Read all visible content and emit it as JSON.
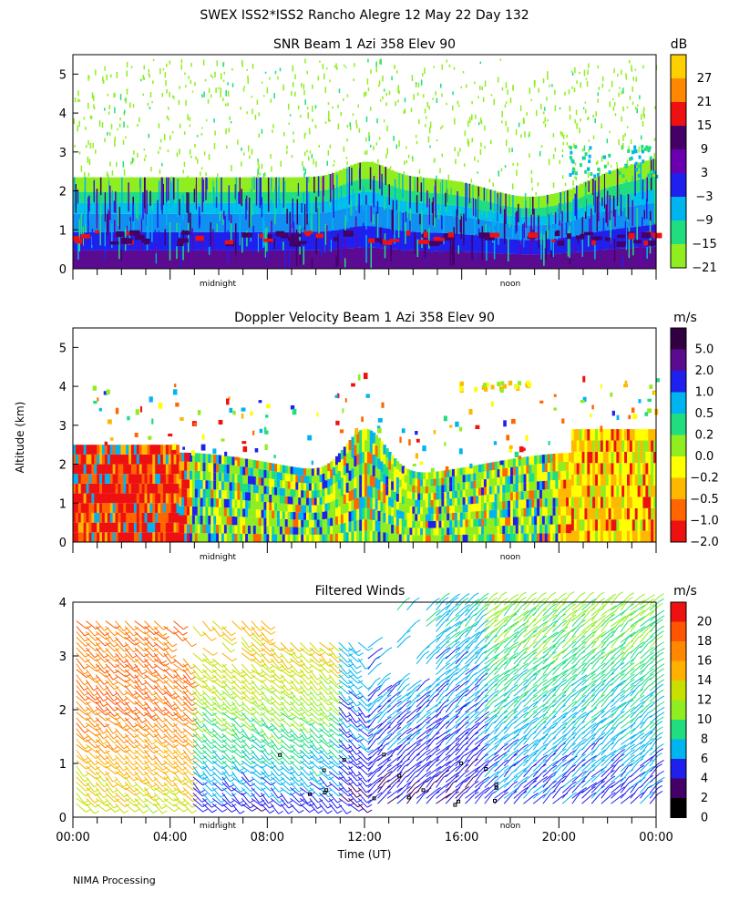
{
  "figure": {
    "title": "SWEX ISS2*ISS2 Rancho Alegre  12 May 22 Day 132",
    "ylabel": "Altitude (km)",
    "xlabel": "Time (UT)",
    "footer": "NIMA Processing",
    "midnight_label": "midnight",
    "noon_label": "noon"
  },
  "chart_data": [
    {
      "type": "heatmap",
      "id": "snr",
      "title": "SNR Beam 1 Azi 358 Elev 90",
      "ylim": [
        0,
        5.5
      ],
      "yticks": [
        "0",
        "1",
        "2",
        "3",
        "4",
        "5"
      ],
      "colorbar": {
        "unit": "dB",
        "labels": [
          "27",
          "21",
          "15",
          "9",
          "3",
          "−3",
          "−9",
          "−15",
          "−21"
        ],
        "colors": [
          "#ffd000",
          "#ff8800",
          "#ee1111",
          "#440066",
          "#6a00b0",
          "#2020ee",
          "#00b4f0",
          "#20dd80",
          "#90ee20"
        ]
      },
      "bands": [
        {
          "from": 0.0,
          "to": 0.5,
          "color": "#5a0b90"
        },
        {
          "from": 0.5,
          "to": 1.0,
          "color": "#2020ee"
        },
        {
          "from": 1.0,
          "to": 1.5,
          "color": "#1090f0"
        },
        {
          "from": 1.5,
          "to": 1.8,
          "color": "#00c0ec"
        },
        {
          "from": 1.8,
          "to": 2.1,
          "color": "#20dd80"
        },
        {
          "from": 2.1,
          "to": 2.5,
          "color": "#90ee20"
        }
      ]
    },
    {
      "type": "heatmap",
      "id": "doppler",
      "title": "Doppler Velocity Beam 1 Azi 358 Elev 90",
      "ylim": [
        0,
        5.5
      ],
      "yticks": [
        "0",
        "1",
        "2",
        "3",
        "4",
        "5"
      ],
      "colorbar": {
        "unit": "m/s",
        "labels": [
          "5.0",
          "2.0",
          "1.0",
          "0.5",
          "0.2",
          "0.0",
          "−0.2",
          "−0.5",
          "−1.0",
          "−2.0"
        ],
        "colors": [
          "#300040",
          "#5a0b90",
          "#2020ee",
          "#00b4f0",
          "#20dd80",
          "#90ee20",
          "#ffff00",
          "#ffb800",
          "#ff6600",
          "#ee1111"
        ]
      }
    },
    {
      "type": "wind-barbs",
      "id": "winds",
      "title": "Filtered Winds",
      "ylim": [
        0,
        4
      ],
      "yticks": [
        "0",
        "1",
        "2",
        "3",
        "4"
      ],
      "xticks": [
        "00:00",
        "04:00",
        "08:00",
        "12:00",
        "16:00",
        "20:00",
        "00:00"
      ],
      "colorbar": {
        "unit": "m/s",
        "labels": [
          "20",
          "18",
          "16",
          "14",
          "12",
          "10",
          "8",
          "6",
          "4",
          "2",
          "0"
        ],
        "colors": [
          "#ee1111",
          "#ff5500",
          "#ff8800",
          "#ffb000",
          "#c8e000",
          "#90ee20",
          "#20dd80",
          "#00b4f0",
          "#2020ee",
          "#440066",
          "#000000"
        ]
      }
    }
  ]
}
